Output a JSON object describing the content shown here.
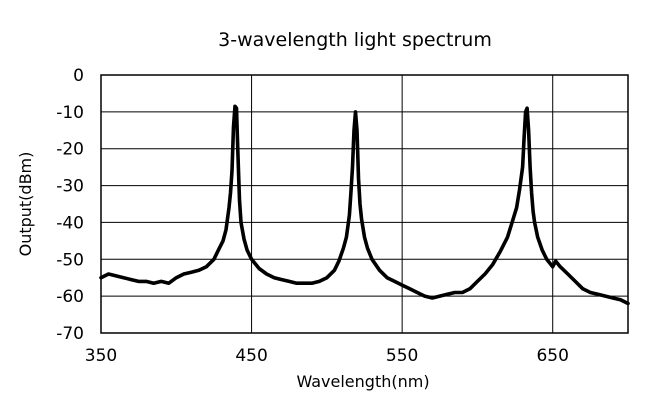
{
  "chart_data": {
    "type": "line",
    "title": "3-wavelength light spectrum",
    "xlabel": "Wavelength(nm)",
    "ylabel": "Output(dBm)",
    "xlim": [
      350,
      700
    ],
    "ylim": [
      -70,
      0
    ],
    "x_ticks": [
      350,
      450,
      550,
      650
    ],
    "y_ticks": [
      0,
      -10,
      -20,
      -30,
      -40,
      -50,
      -60,
      -70
    ],
    "x_tick_labels": [
      "350",
      "450",
      "550",
      "650"
    ],
    "y_tick_labels": [
      "0",
      "-10",
      "-20",
      "-30",
      "-40",
      "-50",
      "-60",
      "-70"
    ],
    "grid": true,
    "series_color": "#000000",
    "series": [
      {
        "x": [
          350,
          355,
          360,
          365,
          370,
          375,
          380,
          385,
          390,
          395,
          400,
          405,
          410,
          415,
          420,
          425,
          428,
          431,
          433,
          435,
          436,
          437,
          438,
          439,
          440,
          441,
          442,
          443,
          445,
          447,
          450,
          455,
          460,
          465,
          470,
          475,
          480,
          485,
          490,
          495,
          500,
          505,
          508,
          511,
          513,
          515,
          516,
          517,
          518,
          519,
          520,
          521,
          522,
          523,
          525,
          527,
          530,
          535,
          540,
          545,
          550,
          555,
          560,
          565,
          570,
          575,
          580,
          585,
          590,
          595,
          600,
          605,
          610,
          615,
          620,
          623,
          626,
          628,
          630,
          631,
          632,
          633,
          634,
          635,
          636,
          637,
          638,
          640,
          643,
          646,
          648,
          650,
          652,
          655,
          660,
          665,
          670,
          675,
          680,
          685,
          690,
          695,
          700
        ],
        "y": [
          -55,
          -54,
          -54.5,
          -55,
          -55.5,
          -56,
          -56,
          -56.5,
          -56,
          -56.5,
          -55,
          -54,
          -53.5,
          -53,
          -52,
          -50,
          -47.5,
          -45,
          -42,
          -36,
          -32,
          -26,
          -14,
          -8.5,
          -9,
          -22,
          -34,
          -40,
          -44.5,
          -47.5,
          -50,
          -52.5,
          -54,
          -55,
          -55.5,
          -56,
          -56.5,
          -56.5,
          -56.5,
          -56,
          -55,
          -53,
          -50.5,
          -47,
          -44,
          -38,
          -32,
          -25,
          -15,
          -10,
          -15,
          -28,
          -35,
          -39,
          -44,
          -47,
          -50,
          -53,
          -55,
          -56,
          -57,
          -58,
          -59,
          -60,
          -60.5,
          -60,
          -59.5,
          -59,
          -59,
          -58,
          -56,
          -54,
          -51.5,
          -48,
          -44,
          -40,
          -36,
          -31,
          -25,
          -17,
          -10,
          -9,
          -15,
          -25,
          -32,
          -37,
          -40,
          -44,
          -47.5,
          -50,
          -51,
          -52,
          -50.5,
          -52,
          -54,
          -56,
          -58,
          -59,
          -59.5,
          -60,
          -60.5,
          -61,
          -62
        ]
      }
    ]
  }
}
